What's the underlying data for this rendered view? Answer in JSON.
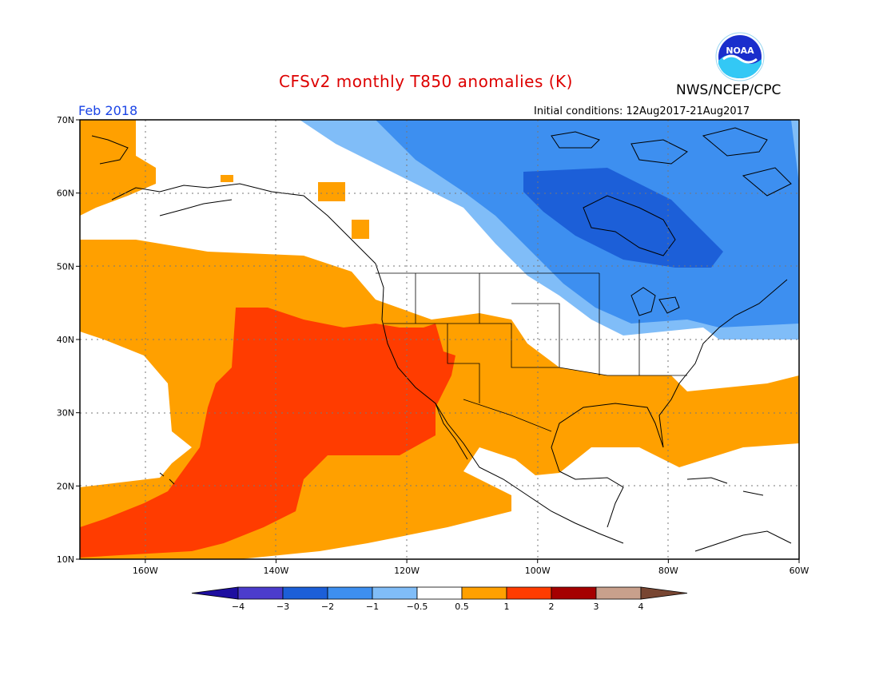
{
  "header": {
    "title": "CFSv2 monthly T850 anomalies (K)",
    "agency": "NWS/NCEP/CPC",
    "period": "Feb 2018",
    "initial_conditions": "Initial conditions: 12Aug2017-21Aug2017",
    "logo_text": "NOAA"
  },
  "map": {
    "lon_range": [
      -170,
      -60
    ],
    "lat_range": [
      10,
      70
    ],
    "grid": true,
    "lat_ticks": [
      {
        "value": 70,
        "label": "70N"
      },
      {
        "value": 60,
        "label": "60N"
      },
      {
        "value": 50,
        "label": "50N"
      },
      {
        "value": 40,
        "label": "40N"
      },
      {
        "value": 30,
        "label": "30N"
      },
      {
        "value": 20,
        "label": "20N"
      },
      {
        "value": 10,
        "label": "10N"
      }
    ],
    "lon_ticks": [
      {
        "value": -160,
        "label": "160W"
      },
      {
        "value": -140,
        "label": "140W"
      },
      {
        "value": -120,
        "label": "120W"
      },
      {
        "value": -100,
        "label": "100W"
      },
      {
        "value": -80,
        "label": "80W"
      },
      {
        "value": -60,
        "label": "60W"
      }
    ]
  },
  "colorbar": {
    "labels": [
      "−4",
      "−3",
      "−2",
      "−1",
      "−0.5",
      "0.5",
      "1",
      "2",
      "3",
      "4"
    ],
    "colors": [
      "#1e0fa0",
      "#4b3ccc",
      "#1c5fd8",
      "#3d8ff0",
      "#80bdf8",
      "#ffffff",
      "#ffa000",
      "#ff3c00",
      "#a50000",
      "#c8a08c",
      "#784632"
    ]
  },
  "colors": {
    "cold_strong": "#1c5fd8",
    "cold": "#3d8ff0",
    "cool": "#80bdf8",
    "warm": "#ffa000",
    "hot": "#ff3c00",
    "coast": "#000000"
  }
}
